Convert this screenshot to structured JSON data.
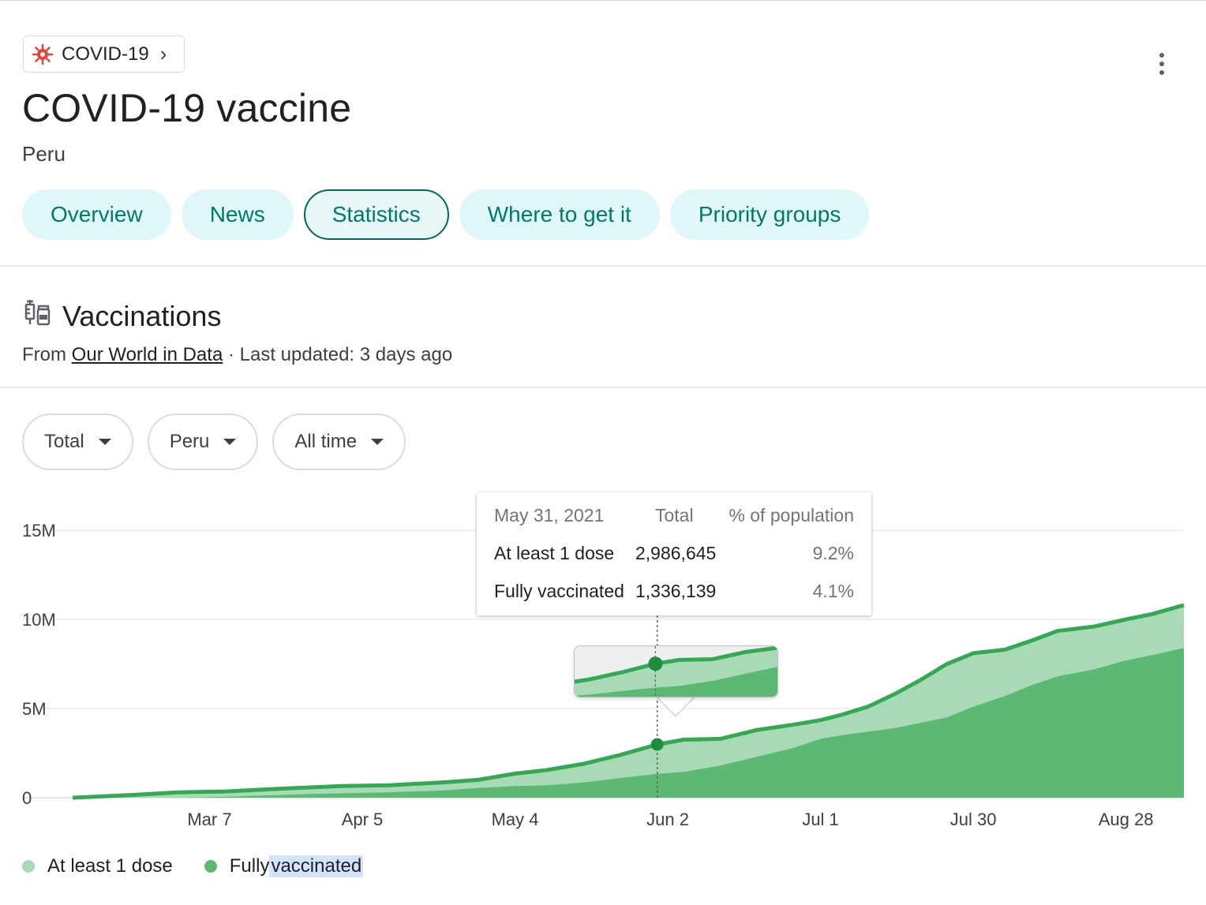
{
  "topic_chip": {
    "label": "COVID-19",
    "icon": "virus-icon",
    "chevron": "›"
  },
  "header": {
    "title": "COVID-19 vaccine",
    "subtitle": "Peru"
  },
  "tabs": [
    {
      "label": "Overview",
      "active": false
    },
    {
      "label": "News",
      "active": false
    },
    {
      "label": "Statistics",
      "active": true
    },
    {
      "label": "Where to get it",
      "active": false
    },
    {
      "label": "Priority groups",
      "active": false
    }
  ],
  "section": {
    "title": "Vaccinations",
    "icon": "syringe-vial-icon",
    "source_prefix": "From",
    "source_link": "Our World in Data",
    "updated": "· Last updated: 3 days ago"
  },
  "filters": [
    {
      "label": "Total"
    },
    {
      "label": "Peru"
    },
    {
      "label": "All time"
    }
  ],
  "tooltip": {
    "date": "May 31, 2021",
    "col_total": "Total",
    "col_pct": "% of population",
    "rows": [
      {
        "label": "At least 1 dose",
        "total": "2,986,645",
        "pct": "9.2%"
      },
      {
        "label": "Fully vaccinated",
        "total": "1,336,139",
        "pct": "4.1%"
      }
    ]
  },
  "legend": [
    {
      "label": "At least 1 dose",
      "color": "#a8dab5"
    },
    {
      "label_plain": "Fully ",
      "label_highlight": "vaccinated",
      "color": "#5bb974"
    }
  ],
  "colors": {
    "line_dark": "#34a853",
    "area_light": "#a8dab5",
    "area_dark": "#5bb974",
    "accent_teal": "#00796b"
  },
  "chart_data": {
    "type": "area",
    "y_ticks": [
      "15M",
      "10M",
      "5M",
      "0"
    ],
    "y_tick_values": [
      15000000,
      10000000,
      5000000,
      0
    ],
    "ylim": [
      0,
      15000000
    ],
    "x_tick_labels": [
      "Mar 7",
      "Apr 5",
      "May 4",
      "Jun 2",
      "Jul 1",
      "Jul 30",
      "Aug 28"
    ],
    "x_tick_dates": [
      "2021-03-07",
      "2021-04-05",
      "2021-05-04",
      "2021-06-02",
      "2021-07-01",
      "2021-07-30",
      "2021-08-28"
    ],
    "xlim": [
      "2021-02-09",
      "2021-09-08"
    ],
    "highlight_date": "2021-05-31",
    "series": [
      {
        "name": "At least 1 dose",
        "points": [
          [
            "2021-02-09",
            0
          ],
          [
            "2021-02-20",
            150000
          ],
          [
            "2021-03-01",
            300000
          ],
          [
            "2021-03-10",
            350000
          ],
          [
            "2021-03-20",
            500000
          ],
          [
            "2021-04-01",
            650000
          ],
          [
            "2021-04-10",
            700000
          ],
          [
            "2021-04-20",
            850000
          ],
          [
            "2021-04-27",
            1000000
          ],
          [
            "2021-05-04",
            1350000
          ],
          [
            "2021-05-10",
            1550000
          ],
          [
            "2021-05-17",
            1900000
          ],
          [
            "2021-05-24",
            2400000
          ],
          [
            "2021-05-31",
            2986645
          ],
          [
            "2021-06-05",
            3250000
          ],
          [
            "2021-06-12",
            3300000
          ],
          [
            "2021-06-19",
            3800000
          ],
          [
            "2021-06-26",
            4100000
          ],
          [
            "2021-07-01",
            4350000
          ],
          [
            "2021-07-05",
            4650000
          ],
          [
            "2021-07-10",
            5100000
          ],
          [
            "2021-07-15",
            5800000
          ],
          [
            "2021-07-20",
            6600000
          ],
          [
            "2021-07-25",
            7500000
          ],
          [
            "2021-07-30",
            8100000
          ],
          [
            "2021-08-05",
            8300000
          ],
          [
            "2021-08-10",
            8800000
          ],
          [
            "2021-08-15",
            9350000
          ],
          [
            "2021-08-22",
            9600000
          ],
          [
            "2021-08-28",
            10000000
          ],
          [
            "2021-09-02",
            10300000
          ],
          [
            "2021-09-08",
            10800000
          ]
        ]
      },
      {
        "name": "Fully vaccinated",
        "points": [
          [
            "2021-02-09",
            0
          ],
          [
            "2021-03-01",
            0
          ],
          [
            "2021-03-10",
            50000
          ],
          [
            "2021-03-20",
            150000
          ],
          [
            "2021-04-01",
            250000
          ],
          [
            "2021-04-10",
            300000
          ],
          [
            "2021-04-20",
            400000
          ],
          [
            "2021-04-27",
            550000
          ],
          [
            "2021-05-04",
            650000
          ],
          [
            "2021-05-10",
            700000
          ],
          [
            "2021-05-17",
            850000
          ],
          [
            "2021-05-24",
            1100000
          ],
          [
            "2021-05-31",
            1336139
          ],
          [
            "2021-06-05",
            1450000
          ],
          [
            "2021-06-12",
            1800000
          ],
          [
            "2021-06-19",
            2300000
          ],
          [
            "2021-06-26",
            2800000
          ],
          [
            "2021-07-01",
            3300000
          ],
          [
            "2021-07-05",
            3500000
          ],
          [
            "2021-07-10",
            3700000
          ],
          [
            "2021-07-15",
            3900000
          ],
          [
            "2021-07-20",
            4200000
          ],
          [
            "2021-07-25",
            4500000
          ],
          [
            "2021-07-30",
            5100000
          ],
          [
            "2021-08-05",
            5700000
          ],
          [
            "2021-08-10",
            6300000
          ],
          [
            "2021-08-15",
            6800000
          ],
          [
            "2021-08-22",
            7200000
          ],
          [
            "2021-08-28",
            7700000
          ],
          [
            "2021-09-02",
            8000000
          ],
          [
            "2021-09-08",
            8400000
          ]
        ]
      }
    ]
  }
}
